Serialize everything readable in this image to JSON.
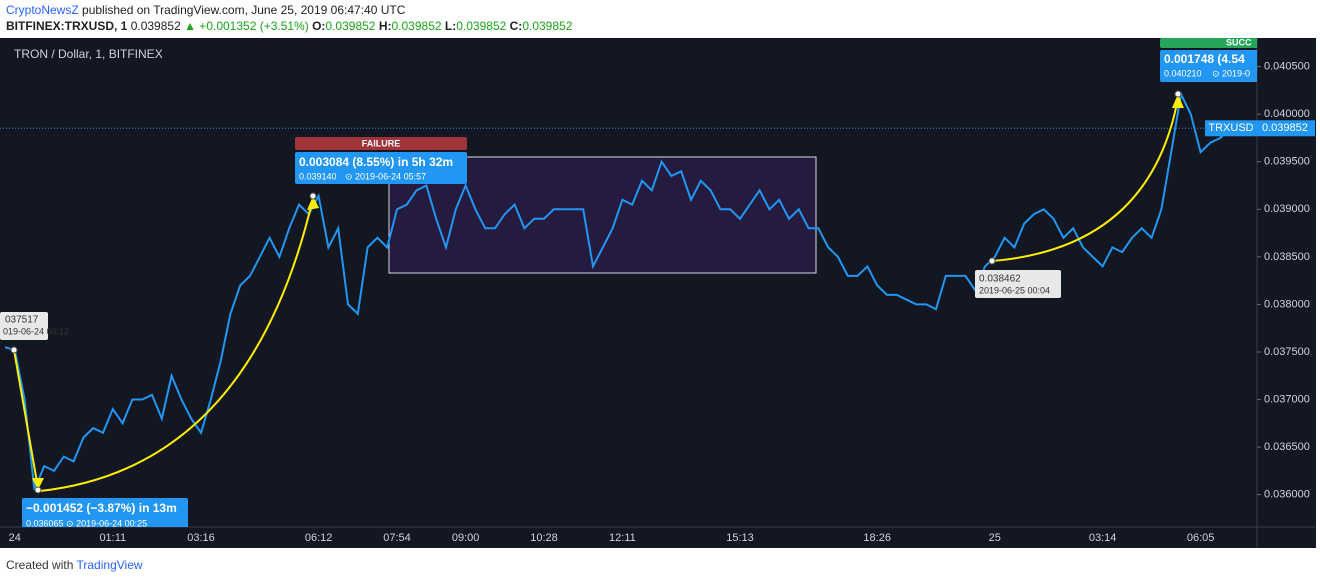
{
  "header": {
    "author": "CryptoNewsZ",
    "published": "published on TradingView.com, June 25, 2019 06:47:40 UTC",
    "ticker": {
      "symbol": "BITFINEX:TRXUSD, 1",
      "last": "0.039852",
      "change": "▲ +0.001352 (+3.51%)",
      "o_label": "O:",
      "o": "0.039852",
      "h_label": "H:",
      "h": "0.039852",
      "l_label": "L:",
      "l": "0.039852",
      "c_label": "C:",
      "c": "0.039852"
    }
  },
  "footer": {
    "created": "Created with",
    "brand": "TradingView"
  },
  "chart_data": {
    "type": "line",
    "title": "TRON / Dollar, 1, BITFINEX",
    "categories": [
      null,
      "24",
      null,
      null,
      null,
      null,
      null,
      null,
      null,
      null,
      null,
      "01:11",
      null,
      null,
      null,
      null,
      null,
      null,
      null,
      null,
      "03:16",
      null,
      null,
      null,
      null,
      null,
      null,
      null,
      null,
      null,
      null,
      null,
      "06:12",
      null,
      null,
      null,
      null,
      null,
      null,
      null,
      "07:54",
      null,
      null,
      null,
      null,
      null,
      null,
      "09:00",
      null,
      null,
      null,
      null,
      null,
      null,
      null,
      "10:28",
      null,
      null,
      null,
      null,
      null,
      null,
      null,
      "12:11",
      null,
      null,
      null,
      null,
      null,
      null,
      null,
      null,
      null,
      null,
      null,
      "15:13",
      null,
      null,
      null,
      null,
      null,
      null,
      null,
      null,
      null,
      null,
      null,
      null,
      null,
      "18:26",
      null,
      null,
      null,
      null,
      null,
      null,
      null,
      null,
      null,
      null,
      null,
      "25",
      null,
      null,
      null,
      null,
      null,
      null,
      null,
      null,
      null,
      null,
      "03:14",
      null,
      null,
      null,
      null,
      null,
      null,
      null,
      null,
      null,
      "06:05",
      null,
      null,
      null
    ],
    "series": [
      {
        "name": "TRXUSD",
        "color": "#2196f3",
        "values": [
          0.03755,
          0.03752,
          0.037,
          0.03605,
          0.0363,
          0.03625,
          0.0364,
          0.03635,
          0.0366,
          0.0367,
          0.03665,
          0.0369,
          0.03675,
          0.037,
          0.037,
          0.03705,
          0.0368,
          0.03725,
          0.037,
          0.0368,
          0.03665,
          0.037,
          0.0374,
          0.0379,
          0.0382,
          0.0383,
          0.0385,
          0.0387,
          0.0385,
          0.0388,
          0.03905,
          0.03895,
          0.03914,
          0.0386,
          0.0388,
          0.038,
          0.0379,
          0.0386,
          0.0387,
          0.0386,
          0.039,
          0.03905,
          0.0392,
          0.03925,
          0.0389,
          0.0386,
          0.039,
          0.03925,
          0.039,
          0.0388,
          0.0388,
          0.03895,
          0.03905,
          0.0388,
          0.0389,
          0.0389,
          0.039,
          0.039,
          0.039,
          0.039,
          0.0384,
          0.0386,
          0.0388,
          0.0391,
          0.03905,
          0.0393,
          0.0392,
          0.0395,
          0.03935,
          0.0394,
          0.0391,
          0.0393,
          0.0392,
          0.039,
          0.039,
          0.0389,
          0.03905,
          0.0392,
          0.039,
          0.0391,
          0.0389,
          0.039,
          0.0388,
          0.0388,
          0.0386,
          0.0385,
          0.0383,
          0.0383,
          0.0384,
          0.0382,
          0.0381,
          0.0381,
          0.03805,
          0.038,
          0.038,
          0.03795,
          0.0383,
          0.0383,
          0.0383,
          0.03815,
          0.0384,
          0.0385,
          0.0387,
          0.0386,
          0.03885,
          0.03895,
          0.039,
          0.0389,
          0.0387,
          0.0388,
          0.0386,
          0.0385,
          0.0384,
          0.0386,
          0.03855,
          0.0387,
          0.0388,
          0.0387,
          0.039,
          0.0396,
          0.04021,
          0.04,
          0.0396,
          0.0397,
          0.03975,
          0.03985
        ]
      }
    ],
    "last_price": 0.039852,
    "ylim": [
      0.03566,
      0.04078
    ],
    "yticks": [
      {
        "value": 0.036,
        "label": "0.036000"
      },
      {
        "value": 0.0365,
        "label": "0.036500"
      },
      {
        "value": 0.037,
        "label": "0.037000"
      },
      {
        "value": 0.0375,
        "label": "0.037500"
      },
      {
        "value": 0.038,
        "label": "0.038000"
      },
      {
        "value": 0.0385,
        "label": "0.038500"
      },
      {
        "value": 0.039,
        "label": "0.039000"
      },
      {
        "value": 0.0395,
        "label": "0.039500"
      },
      {
        "value": 0.04,
        "label": "0.040000"
      },
      {
        "value": 0.0405,
        "label": "0.040500"
      }
    ],
    "grid": false,
    "annotations": {
      "start": {
        "price": "037517",
        "time": "019-06-24 00:12"
      },
      "drop": {
        "change": "−0.001452 (−3.87%) in 13m",
        "detail": "0.036065 ⊙ 2019-06-24 00:25"
      },
      "rise": {
        "status": "FAILURE",
        "change": "0.003084 (8.55%) in 5h 32m",
        "price": "0.039140",
        "time": "⊙ 2019-06-24  05:57"
      },
      "low2": {
        "price": "0.038462",
        "time": "2019-06-25 00:04"
      },
      "rise2": {
        "status": "SUCC",
        "change": "0.001748 (4.54",
        "price": "0.040210",
        "time": "⊙ 2019-0"
      }
    }
  }
}
